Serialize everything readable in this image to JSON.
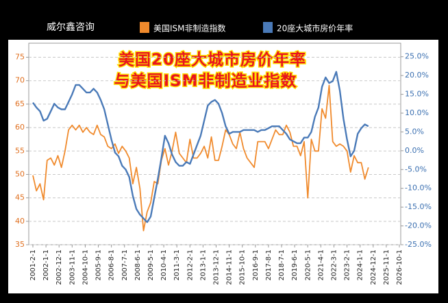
{
  "chart_data": {
    "type": "line",
    "source": "威尔鑫咨询",
    "title": "美国20座大城市房价年率",
    "subtitle": "与美国ISM非制造业指数",
    "x": [
      "2001-2-1",
      "2001-5-1",
      "2001-8-1",
      "2001-11-1",
      "2002-2-1",
      "2002-5-1",
      "2002-8-1",
      "2002-11-1",
      "2003-2-1",
      "2003-5-1",
      "2003-8-1",
      "2003-11-1",
      "2004-2-1",
      "2004-5-1",
      "2004-8-1",
      "2004-11-1",
      "2005-2-1",
      "2005-5-1",
      "2005-8-1",
      "2005-11-1",
      "2006-2-1",
      "2006-5-1",
      "2006-8-1",
      "2006-11-1",
      "2007-2-1",
      "2007-5-1",
      "2007-8-1",
      "2007-11-1",
      "2008-2-1",
      "2008-5-1",
      "2008-8-1",
      "2008-11-1",
      "2009-2-1",
      "2009-5-1",
      "2009-8-1",
      "2009-11-1",
      "2010-2-1",
      "2010-5-1",
      "2010-8-1",
      "2010-11-1",
      "2011-2-1",
      "2011-5-1",
      "2011-8-1",
      "2011-11-1",
      "2012-2-1",
      "2012-5-1",
      "2012-8-1",
      "2012-11-1",
      "2013-2-1",
      "2013-5-1",
      "2013-8-1",
      "2013-11-1",
      "2014-2-1",
      "2014-5-1",
      "2014-8-1",
      "2014-11-1",
      "2015-2-1",
      "2015-5-1",
      "2015-8-1",
      "2015-11-1",
      "2016-2-1",
      "2016-5-1",
      "2016-8-1",
      "2016-11-1",
      "2017-2-1",
      "2017-5-1",
      "2017-8-1",
      "2017-11-1",
      "2018-2-1",
      "2018-5-1",
      "2018-8-1",
      "2018-11-1",
      "2019-2-1",
      "2019-5-1",
      "2019-8-1",
      "2019-11-1",
      "2020-2-1",
      "2020-5-1",
      "2020-8-1",
      "2020-11-1",
      "2021-2-1",
      "2021-5-1",
      "2021-8-1",
      "2021-11-1",
      "2022-2-1",
      "2022-5-1",
      "2022-8-1",
      "2022-11-1",
      "2023-2-1",
      "2023-5-1",
      "2023-8-1",
      "2023-11-1",
      "2024-2-1",
      "2024-5-1",
      "2024-8-1"
    ],
    "series": [
      {
        "name": "美国ISM非制造指数",
        "color": "#f08a2c",
        "axis": "y",
        "values": [
          49.8,
          46.5,
          48.0,
          44.6,
          53.0,
          53.5,
          52.0,
          54.0,
          51.5,
          55.0,
          59.5,
          60.5,
          59.5,
          60.5,
          59.0,
          60.0,
          59.0,
          58.5,
          60.5,
          58.5,
          58.0,
          56.0,
          55.5,
          56.5,
          54.5,
          56.0,
          55.0,
          53.5,
          48.0,
          51.5,
          47.0,
          38.0,
          42.0,
          44.0,
          48.5,
          48.0,
          53.0,
          55.5,
          52.0,
          55.0,
          59.0,
          54.5,
          53.5,
          52.5,
          57.5,
          53.5,
          53.5,
          54.5,
          56.0,
          53.5,
          58.0,
          53.0,
          53.0,
          56.0,
          59.5,
          58.5,
          56.5,
          55.5,
          59.0,
          55.5,
          53.5,
          52.5,
          51.5,
          57.0,
          57.0,
          57.0,
          55.5,
          57.5,
          59.5,
          58.5,
          58.5,
          60.5,
          59.0,
          56.0,
          56.0,
          54.0,
          57.0,
          45.0,
          57.5,
          55.0,
          55.0,
          64.0,
          62.0,
          69.0,
          57.0,
          56.0,
          56.5,
          56.0,
          55.0,
          50.5,
          54.0,
          52.5,
          52.5,
          49.0,
          51.5
        ]
      },
      {
        "name": "20座大城市房价年率",
        "color": "#4a7ab8",
        "axis": "y2",
        "values": [
          12.8,
          11.5,
          10.5,
          8.0,
          8.5,
          10.5,
          12.5,
          11.5,
          11.0,
          11.0,
          13.0,
          15.0,
          17.5,
          17.5,
          16.5,
          15.5,
          15.5,
          16.5,
          15.5,
          13.5,
          11.0,
          7.0,
          3.0,
          -0.5,
          -1.5,
          -4.0,
          -5.0,
          -7.0,
          -12.0,
          -15.5,
          -17.0,
          -18.0,
          -19.0,
          -17.5,
          -12.5,
          -7.5,
          -2.0,
          4.0,
          2.0,
          -1.0,
          -3.0,
          -4.0,
          -4.0,
          -3.0,
          -3.5,
          -1.0,
          1.5,
          4.0,
          8.0,
          12.0,
          13.0,
          13.5,
          12.5,
          10.0,
          6.5,
          4.5,
          5.0,
          5.0,
          5.0,
          5.5,
          5.5,
          5.5,
          5.5,
          5.0,
          5.5,
          5.5,
          6.0,
          6.5,
          6.5,
          6.5,
          5.5,
          4.5,
          3.0,
          2.5,
          2.0,
          2.0,
          3.5,
          3.5,
          5.0,
          9.0,
          11.5,
          17.0,
          19.5,
          18.0,
          18.5,
          21.0,
          16.0,
          8.5,
          3.0,
          -1.5,
          0.0,
          4.5,
          6.0,
          7.0,
          6.5
        ]
      }
    ],
    "xlim": [
      "2001-2-1",
      "2026-10-1"
    ],
    "xticks": [
      "2001-2-1",
      "2002-1-1",
      "2002-12-1",
      "2003-11-1",
      "2004-10-1",
      "2005-9-1",
      "2006-8-1",
      "2007-7-1",
      "2008-6-1",
      "2009-5-1",
      "2010-4-1",
      "2011-3-1",
      "2012-2-1",
      "2013-1-1",
      "2013-12-1",
      "2014-11-1",
      "2015-10-1",
      "2016-9-1",
      "2017-8-1",
      "2018-7-1",
      "2019-6-1",
      "2020-5-1",
      "2021-4-1",
      "2022-3-1",
      "2023-2-1",
      "2024-1-1",
      "2024-12-1",
      "2025-11-1",
      "2026-10-1"
    ],
    "ylim": [
      35,
      78
    ],
    "yticks": [
      35,
      40,
      45,
      50,
      55,
      60,
      65,
      70,
      75
    ],
    "y2lim": [
      -25,
      28.6
    ],
    "y2ticks": [
      {
        "value": 25,
        "label": "25.0%"
      },
      {
        "value": 20,
        "label": "20.0%"
      },
      {
        "value": 15,
        "label": "15.0%"
      },
      {
        "value": 10,
        "label": "10.0%"
      },
      {
        "value": 5,
        "label": "5.0%"
      },
      {
        "value": 0,
        "label": "0.0%"
      },
      {
        "value": -5,
        "label": "-5.0%"
      },
      {
        "value": -10,
        "label": "-10.0%"
      },
      {
        "value": -15,
        "label": "-15.0%"
      },
      {
        "value": -20,
        "label": "-20.0%"
      },
      {
        "value": -25,
        "label": "-25.0%"
      }
    ],
    "grid": true,
    "ytick_color": "#e07020",
    "y2tick_color": "#3a6fb0"
  }
}
